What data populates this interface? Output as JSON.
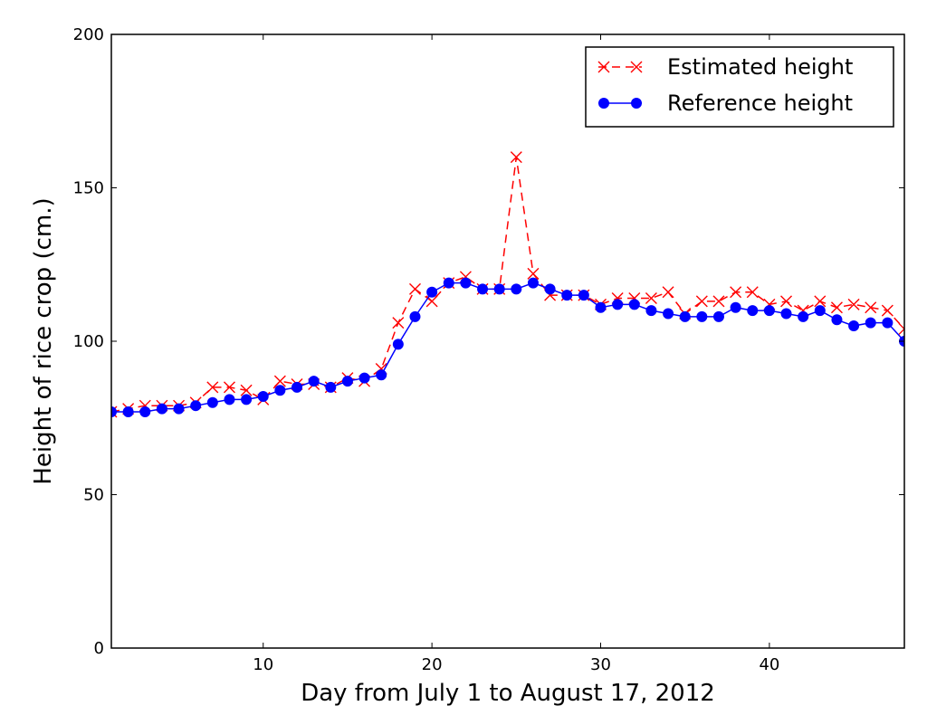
{
  "chart_data": {
    "type": "line",
    "title": "",
    "xlabel": "Day from July 1 to August 17, 2012",
    "ylabel": "Height of rice crop (cm.)",
    "xlim": [
      1,
      48
    ],
    "ylim": [
      0,
      200
    ],
    "xticks": [
      10,
      20,
      30,
      40
    ],
    "yticks": [
      0,
      50,
      100,
      150,
      200
    ],
    "grid": false,
    "legend_position": "top-right",
    "x": [
      1,
      2,
      3,
      4,
      5,
      6,
      7,
      8,
      9,
      10,
      11,
      12,
      13,
      14,
      15,
      16,
      17,
      18,
      19,
      20,
      21,
      22,
      23,
      24,
      25,
      26,
      27,
      28,
      29,
      30,
      31,
      32,
      33,
      34,
      35,
      36,
      37,
      38,
      39,
      40,
      41,
      42,
      43,
      44,
      45,
      46,
      47,
      48
    ],
    "series": [
      {
        "name": "Estimated height",
        "color": "#ff0000",
        "marker": "x",
        "linestyle": "dashed",
        "values": [
          77,
          78,
          79,
          79,
          79,
          80,
          85,
          85,
          84,
          81,
          87,
          86,
          86,
          85,
          88,
          87,
          91,
          106,
          117,
          113,
          119,
          121,
          117,
          117,
          160,
          122,
          115,
          115,
          115,
          112,
          114,
          114,
          114,
          116,
          109,
          113,
          113,
          116,
          116,
          112,
          113,
          110,
          113,
          111,
          112,
          111,
          110,
          104
        ]
      },
      {
        "name": "Reference height",
        "color": "#0000ff",
        "marker": "o",
        "linestyle": "solid",
        "values": [
          77,
          77,
          77,
          78,
          78,
          79,
          80,
          81,
          81,
          82,
          84,
          85,
          87,
          85,
          87,
          88,
          89,
          99,
          108,
          116,
          119,
          119,
          117,
          117,
          117,
          119,
          117,
          115,
          115,
          111,
          112,
          112,
          110,
          109,
          108,
          108,
          108,
          111,
          110,
          110,
          109,
          108,
          110,
          107,
          105,
          106,
          106,
          100
        ]
      }
    ]
  }
}
